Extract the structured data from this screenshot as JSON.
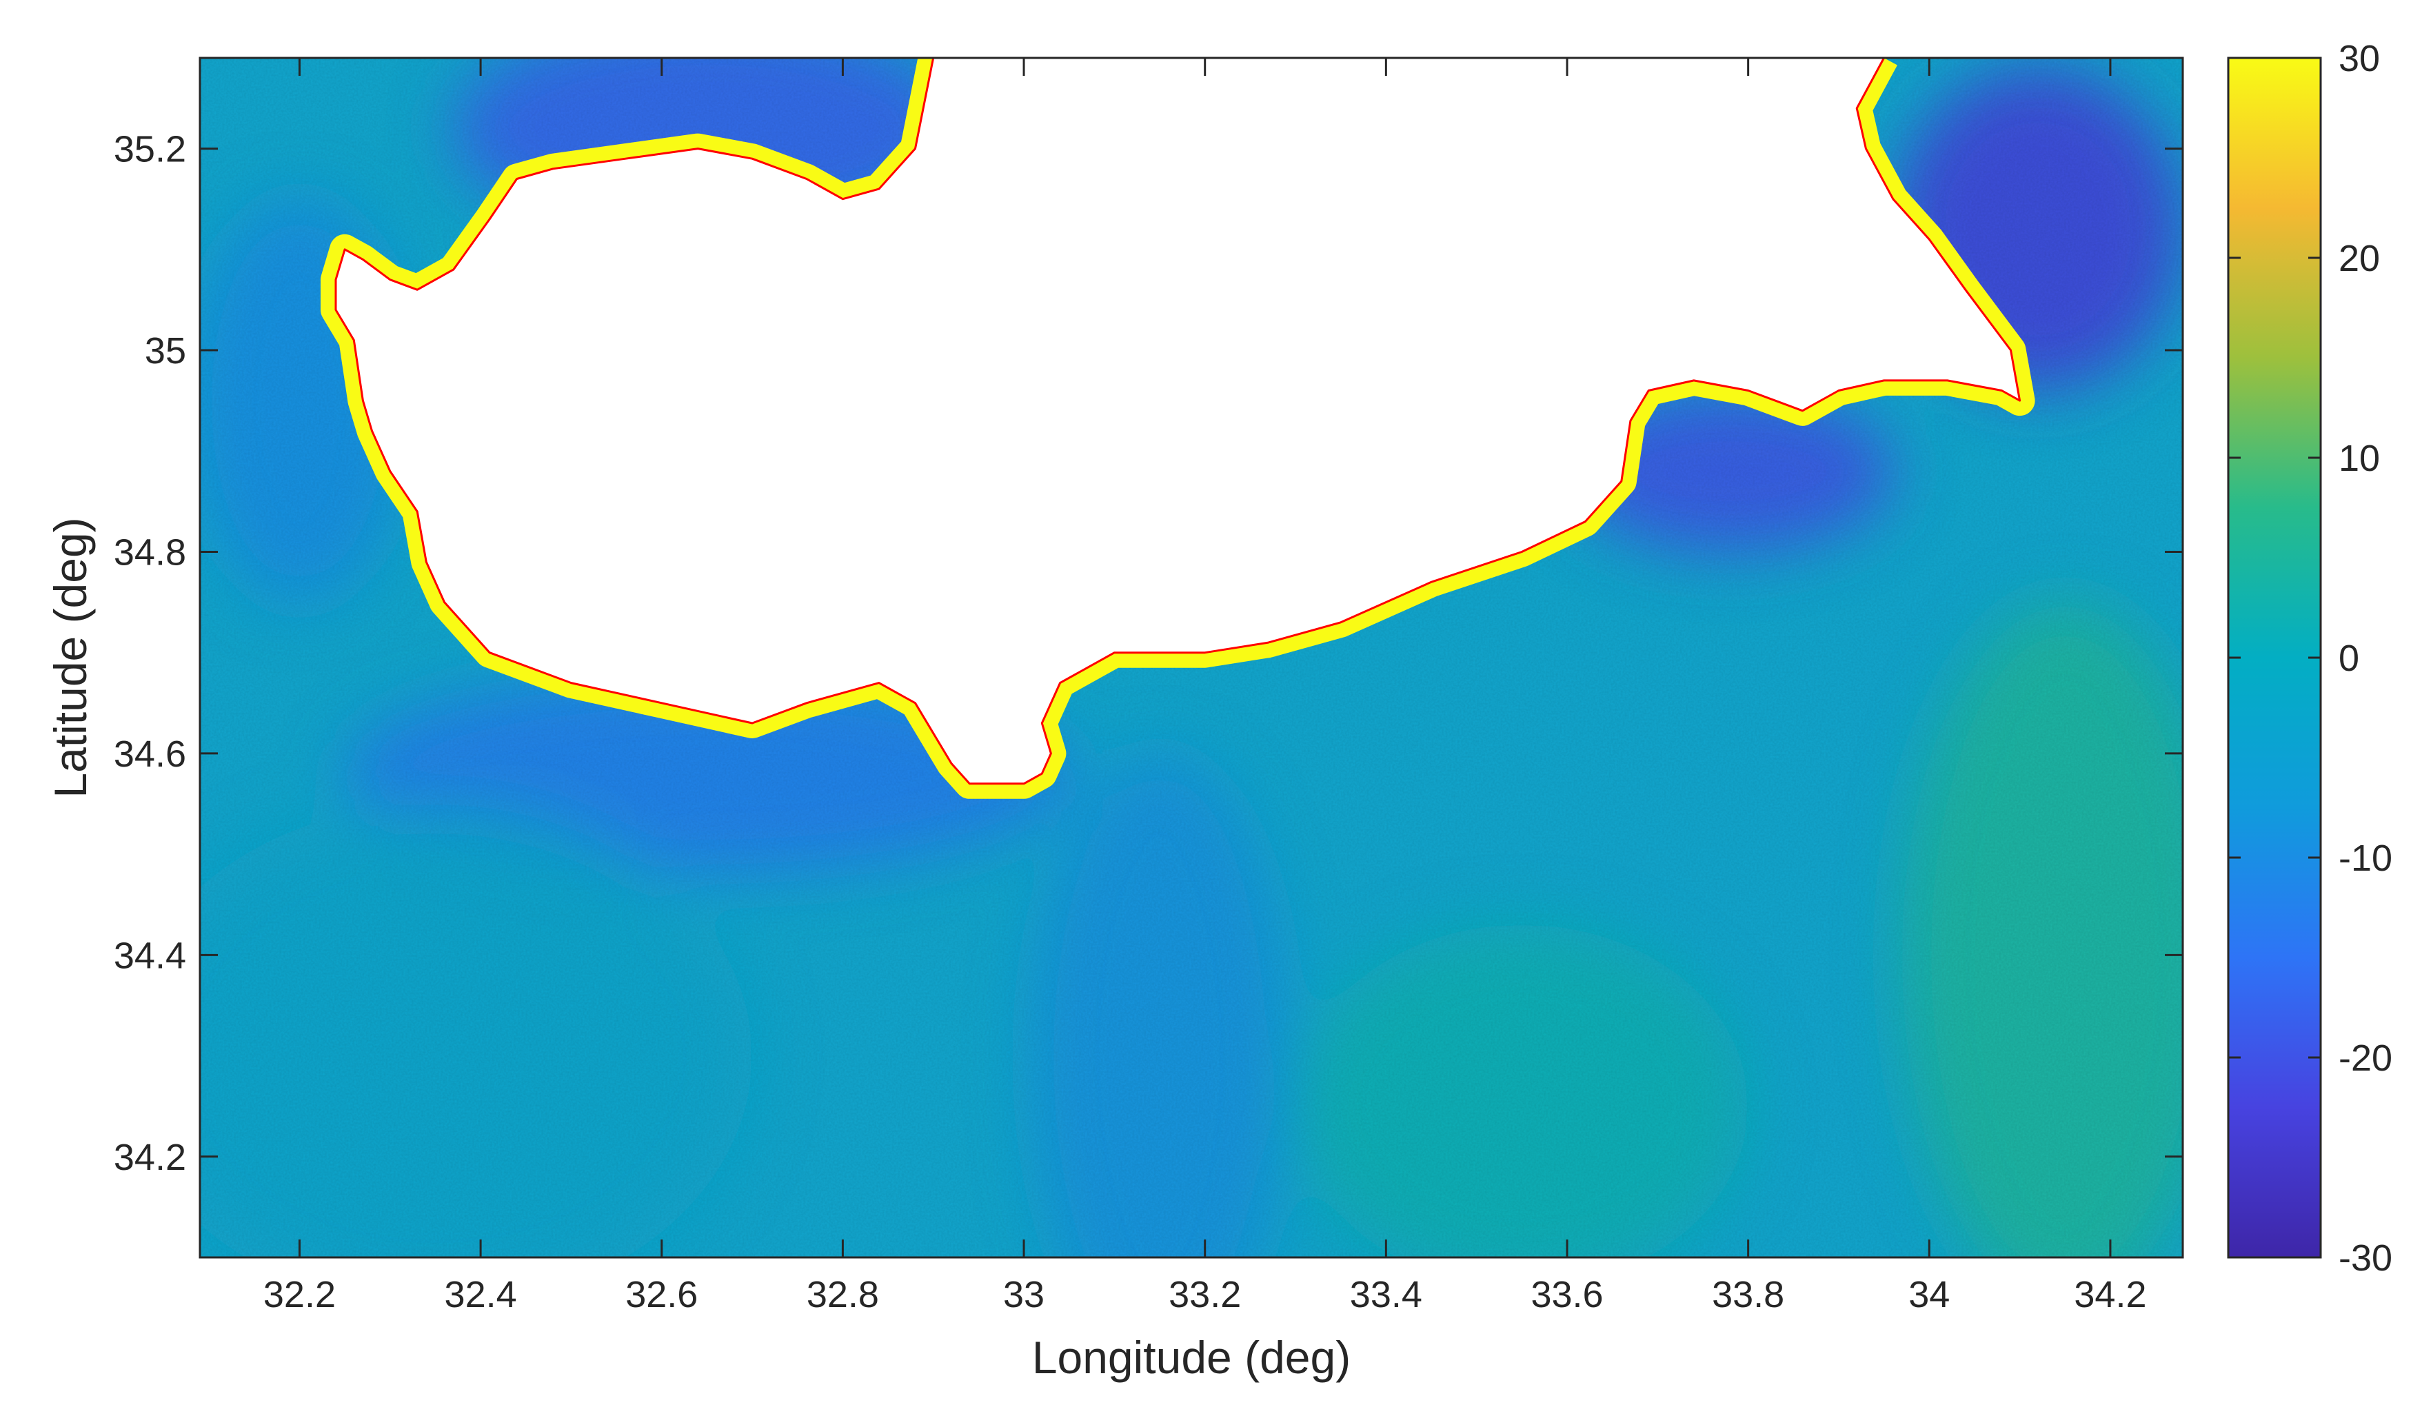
{
  "figure": {
    "xlabel": "Longitude (deg)",
    "ylabel": "Latitude (deg)"
  },
  "chart_data": {
    "type": "heatmap",
    "xlim": [
      32.09,
      34.28
    ],
    "ylim": [
      34.1,
      35.29
    ],
    "x_ticks": [
      32.2,
      32.4,
      32.6,
      32.8,
      33,
      33.2,
      33.4,
      33.6,
      33.8,
      34,
      34.2
    ],
    "x_tick_labels": [
      "32.2",
      "32.4",
      "32.6",
      "32.8",
      "33",
      "33.2",
      "33.4",
      "33.6",
      "33.8",
      "34",
      "34.2"
    ],
    "y_ticks": [
      34.2,
      34.4,
      34.6,
      34.8,
      35,
      35.2
    ],
    "y_tick_labels": [
      "34.2",
      "34.4",
      "34.6",
      "34.8",
      "35",
      "35.2"
    ],
    "colorbar": {
      "range": [
        -30,
        30
      ],
      "ticks": [
        30,
        20,
        10,
        0,
        -10,
        -20,
        -30
      ],
      "tick_labels": [
        "30",
        "20",
        "10",
        "0",
        "-10",
        "-20",
        "-30"
      ],
      "colormap": "parula",
      "colormap_stops": [
        "#3e26a8",
        "#4743e0",
        "#2e74f6",
        "#109bdc",
        "#03aec3",
        "#28bb8b",
        "#9dc03d",
        "#f5b932",
        "#f9fb15"
      ]
    },
    "land_color": "#ffffff",
    "coastline_color": "#ff0000",
    "coastal_band_color": "#f9fb15",
    "coastline": [
      [
        32.9,
        35.29
      ],
      [
        32.88,
        35.2
      ],
      [
        32.84,
        35.16
      ],
      [
        32.8,
        35.15
      ],
      [
        32.76,
        35.17
      ],
      [
        32.7,
        35.19
      ],
      [
        32.64,
        35.2
      ],
      [
        32.56,
        35.19
      ],
      [
        32.48,
        35.18
      ],
      [
        32.44,
        35.17
      ],
      [
        32.41,
        35.13
      ],
      [
        32.37,
        35.08
      ],
      [
        32.33,
        35.06
      ],
      [
        32.3,
        35.07
      ],
      [
        32.27,
        35.09
      ],
      [
        32.25,
        35.1
      ],
      [
        32.24,
        35.07
      ],
      [
        32.24,
        35.04
      ],
      [
        32.26,
        35.01
      ],
      [
        32.27,
        34.95
      ],
      [
        32.28,
        34.92
      ],
      [
        32.3,
        34.88
      ],
      [
        32.33,
        34.84
      ],
      [
        32.34,
        34.79
      ],
      [
        32.36,
        34.75
      ],
      [
        32.41,
        34.7
      ],
      [
        32.5,
        34.67
      ],
      [
        32.6,
        34.65
      ],
      [
        32.7,
        34.63
      ],
      [
        32.76,
        34.65
      ],
      [
        32.84,
        34.67
      ],
      [
        32.88,
        34.65
      ],
      [
        32.92,
        34.59
      ],
      [
        32.94,
        34.57
      ],
      [
        33.0,
        34.57
      ],
      [
        33.02,
        34.58
      ],
      [
        33.03,
        34.6
      ],
      [
        33.02,
        34.63
      ],
      [
        33.04,
        34.67
      ],
      [
        33.1,
        34.7
      ],
      [
        33.2,
        34.7
      ],
      [
        33.27,
        34.71
      ],
      [
        33.35,
        34.73
      ],
      [
        33.45,
        34.77
      ],
      [
        33.55,
        34.8
      ],
      [
        33.62,
        34.83
      ],
      [
        33.66,
        34.87
      ],
      [
        33.67,
        34.93
      ],
      [
        33.69,
        34.96
      ],
      [
        33.74,
        34.97
      ],
      [
        33.8,
        34.96
      ],
      [
        33.86,
        34.94
      ],
      [
        33.9,
        34.96
      ],
      [
        33.95,
        34.97
      ],
      [
        34.02,
        34.97
      ],
      [
        34.08,
        34.96
      ],
      [
        34.1,
        34.95
      ],
      [
        34.09,
        35.0
      ],
      [
        34.04,
        35.06
      ],
      [
        34.0,
        35.11
      ],
      [
        33.96,
        35.15
      ],
      [
        33.93,
        35.2
      ],
      [
        33.92,
        35.24
      ],
      [
        33.95,
        35.29
      ]
    ],
    "field_description": [
      {
        "region": "northwest bay north of coast (32.4-32.9, 35.1-35.29)",
        "value_range": [
          -22,
          -15
        ]
      },
      {
        "region": "northeast bay (34.0-34.2, 35.0-35.29)",
        "value_range": [
          -26,
          -18
        ]
      },
      {
        "region": "bay south of 33.65-33.9 coast (34.83-34.96)",
        "value_range": [
          -24,
          -18
        ]
      },
      {
        "region": "southern coastal strip (32.3-33.0, 34.45-34.65)",
        "value_range": [
          -18,
          -12
        ]
      },
      {
        "region": "open sea southwest (32.1-32.7, 34.1-34.5)",
        "value_range": [
          -6,
          0
        ]
      },
      {
        "region": "open sea south-center (33.4-33.7, 34.1-34.4)",
        "value_range": [
          0,
          4
        ]
      },
      {
        "region": "open sea southeast (34.0-34.28, 34.1-34.7)",
        "value_range": [
          2,
          8
        ]
      },
      {
        "region": "coastal band along land boundary",
        "value_range": [
          28,
          30
        ]
      }
    ]
  }
}
